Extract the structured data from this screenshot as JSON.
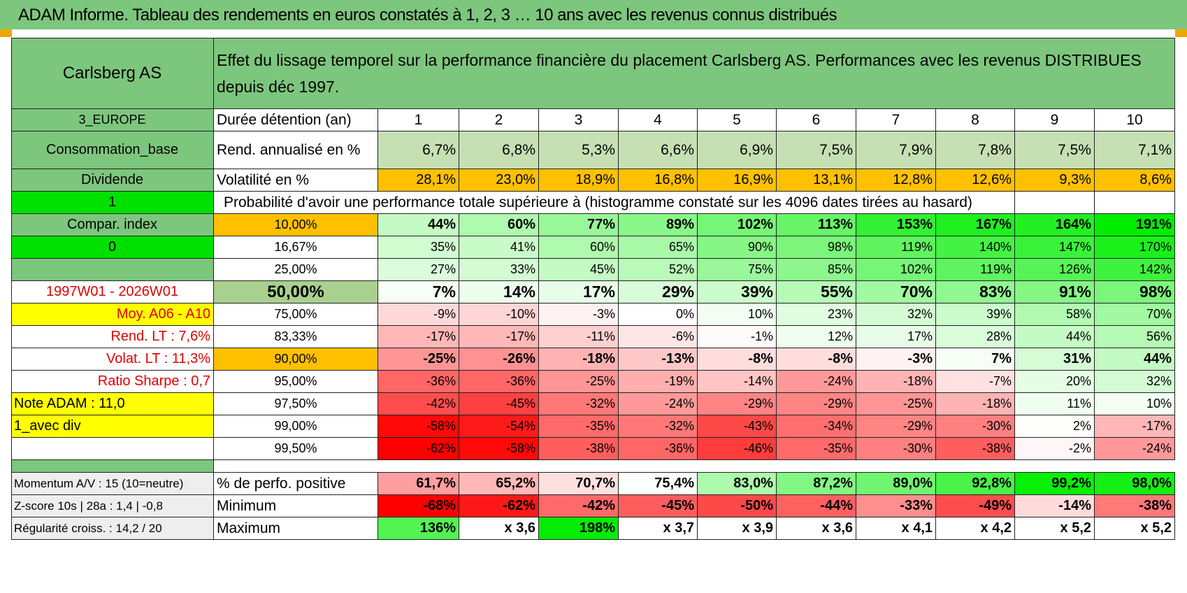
{
  "title": "ADAM Informe. Tableau des rendements en euros constatés à 1, 2, 3 … 10 ans avec les revenus connus distribués",
  "colors": {
    "header_green": "#7dc67d",
    "bright_green": "#00e000",
    "yellow": "#ffff00",
    "orange": "#ffc000",
    "red_text": "#e00000",
    "low_red": "#ff0000",
    "high_green": "#00ee00"
  },
  "left": {
    "name": "Carlsberg AS",
    "zone": "3_EUROPE",
    "sector": "Consommation_base",
    "income_type": "Dividende",
    "flag1": "1",
    "compar_label": "Compar. index",
    "flag0": "0",
    "period": "1997W01 - 2026W01",
    "moy": "Moy. A06 - A10",
    "rend_lt": "Rend. LT :   7,6%",
    "volat_lt": "Volat. LT :   11,3%",
    "sharpe": "Ratio Sharpe :    0,7",
    "note": "Note ADAM : 11,0",
    "mode": "1_avec div"
  },
  "header_text": "Effet du lissage temporel sur la performance financière du placement Carlsberg AS. Performances avec les revenus DISTRIBUES depuis déc 1997.",
  "duration_label": "Durée détention (an)",
  "years": [
    "1",
    "2",
    "3",
    "4",
    "5",
    "6",
    "7",
    "8",
    "9",
    "10"
  ],
  "rend_label": "Rend. annualisé en %",
  "rend": [
    "6,7%",
    "6,8%",
    "5,3%",
    "6,6%",
    "6,9%",
    "7,5%",
    "7,9%",
    "7,8%",
    "7,5%",
    "7,1%"
  ],
  "vol_label": "Volatilité en %",
  "vol": [
    "28,1%",
    "23,0%",
    "18,9%",
    "16,8%",
    "16,9%",
    "13,1%",
    "12,8%",
    "12,6%",
    "9,3%",
    "8,6%"
  ],
  "prob_header": "Probabilité d'avoir une performance totale supérieure à (histogramme constaté sur les 4096 dates tirées au hasard)",
  "perc_rows": [
    {
      "p": "10,00%",
      "v": [
        "44%",
        "60%",
        "77%",
        "89%",
        "102%",
        "113%",
        "153%",
        "167%",
        "164%",
        "191%"
      ]
    },
    {
      "p": "16,67%",
      "v": [
        "35%",
        "41%",
        "60%",
        "65%",
        "90%",
        "98%",
        "119%",
        "140%",
        "147%",
        "170%"
      ]
    },
    {
      "p": "25,00%",
      "v": [
        "27%",
        "33%",
        "45%",
        "52%",
        "75%",
        "85%",
        "102%",
        "119%",
        "126%",
        "142%"
      ]
    },
    {
      "p": "50,00%",
      "v": [
        "7%",
        "14%",
        "17%",
        "29%",
        "39%",
        "55%",
        "70%",
        "83%",
        "91%",
        "98%"
      ]
    },
    {
      "p": "75,00%",
      "v": [
        "-9%",
        "-10%",
        "-3%",
        "0%",
        "10%",
        "23%",
        "32%",
        "39%",
        "58%",
        "70%"
      ]
    },
    {
      "p": "83,33%",
      "v": [
        "-17%",
        "-17%",
        "-11%",
        "-6%",
        "-1%",
        "12%",
        "17%",
        "28%",
        "44%",
        "56%"
      ]
    },
    {
      "p": "90,00%",
      "v": [
        "-25%",
        "-26%",
        "-18%",
        "-13%",
        "-8%",
        "-8%",
        "-3%",
        "7%",
        "31%",
        "44%"
      ]
    },
    {
      "p": "95,00%",
      "v": [
        "-36%",
        "-36%",
        "-25%",
        "-19%",
        "-14%",
        "-24%",
        "-18%",
        "-7%",
        "20%",
        "32%"
      ]
    },
    {
      "p": "97,50%",
      "v": [
        "-42%",
        "-45%",
        "-32%",
        "-24%",
        "-29%",
        "-29%",
        "-25%",
        "-18%",
        "11%",
        "10%"
      ]
    },
    {
      "p": "99,00%",
      "v": [
        "-58%",
        "-54%",
        "-35%",
        "-32%",
        "-43%",
        "-34%",
        "-29%",
        "-30%",
        "2%",
        "-17%"
      ]
    },
    {
      "p": "99,50%",
      "v": [
        "-62%",
        "-58%",
        "-38%",
        "-36%",
        "-46%",
        "-35%",
        "-30%",
        "-38%",
        "-2%",
        "-24%"
      ]
    }
  ],
  "bottom": {
    "momentum": "Momentum A/V : 15 (10=neutre)",
    "zscore": "Z-score 10s | 28a : 1,4 | -0,8",
    "regul": "Régularité croiss. : 14,2 / 20",
    "pos_label": "% de perfo. positive",
    "pos": [
      "61,7%",
      "65,2%",
      "70,7%",
      "75,4%",
      "83,0%",
      "87,2%",
      "89,0%",
      "92,8%",
      "99,2%",
      "98,0%"
    ],
    "min_label": "Minimum",
    "min": [
      "-68%",
      "-62%",
      "-42%",
      "-45%",
      "-50%",
      "-44%",
      "-33%",
      "-49%",
      "-14%",
      "-38%"
    ],
    "max_label": "Maximum",
    "max": [
      "136%",
      "x 3,6",
      "198%",
      "x 3,7",
      "x 3,9",
      "x 3,6",
      "x 4,1",
      "x 4,2",
      "x 5,2",
      "x 5,2"
    ]
  }
}
